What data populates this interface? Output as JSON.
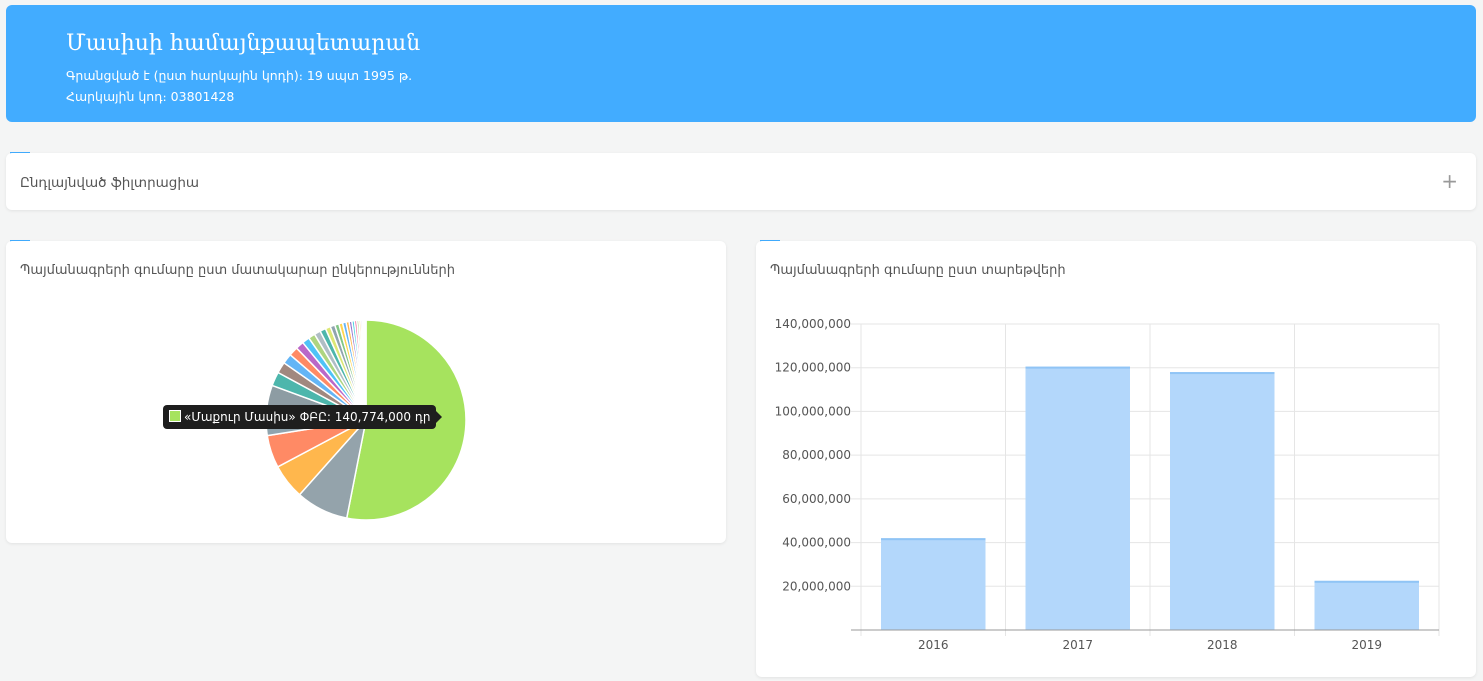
{
  "header": {
    "title": "Մասիսի համայնքապետարան",
    "registered": "Գրանցված է (ըստ հարկային կոդի)։ 19 սպտ 1995 թ.",
    "tax_code": "Հարկային կոդ։ 03801428"
  },
  "filter": {
    "label": "Ընդլայնված ֆիլտրացիա",
    "toggle_icon": "+"
  },
  "pie_card": {
    "title": "Պայմանագրերի գումարը ըստ մատակարար ընկերությունների",
    "tooltip": {
      "text": "«Մաքուր Մասիս» ՓԲԸ: 140,774,000 դր",
      "color": "#a6e35e"
    }
  },
  "bar_card": {
    "title": "Պայմանագրերի գումարը ըստ տարեթվերի"
  },
  "chart_data": [
    {
      "type": "pie",
      "title": "Պայմանագրերի գումարը ըստ մատակարար ընկերությունների",
      "slices": [
        {
          "label": "«Մաքուր Մասիս» ՓԲԸ",
          "value": 140774000,
          "color": "#a6e35e"
        },
        {
          "label": "",
          "value": 22500000,
          "color": "#94a3ab"
        },
        {
          "label": "",
          "value": 15000000,
          "color": "#ffb74d"
        },
        {
          "label": "",
          "value": 14000000,
          "color": "#ff8a65"
        },
        {
          "label": "",
          "value": 11500000,
          "color": "#90a4ae"
        },
        {
          "label": "",
          "value": 10000000,
          "color": "#8d9ca3"
        },
        {
          "label": "",
          "value": 6000000,
          "color": "#4db6ac"
        },
        {
          "label": "",
          "value": 4800000,
          "color": "#a1887f"
        },
        {
          "label": "",
          "value": 4300000,
          "color": "#64b5f6"
        },
        {
          "label": "",
          "value": 3900000,
          "color": "#ff8a65"
        },
        {
          "label": "",
          "value": 3500000,
          "color": "#ba68c8"
        },
        {
          "label": "",
          "value": 3200000,
          "color": "#4fc3f7"
        },
        {
          "label": "",
          "value": 2900000,
          "color": "#aed581"
        },
        {
          "label": "",
          "value": 2700000,
          "color": "#b0bec5"
        },
        {
          "label": "",
          "value": 2500000,
          "color": "#4db6ac"
        },
        {
          "label": "",
          "value": 2200000,
          "color": "#dce775"
        },
        {
          "label": "",
          "value": 2000000,
          "color": "#90a4ae"
        },
        {
          "label": "",
          "value": 1800000,
          "color": "#81c784"
        },
        {
          "label": "",
          "value": 1600000,
          "color": "#ffd54f"
        },
        {
          "label": "",
          "value": 1500000,
          "color": "#64b5f6"
        },
        {
          "label": "",
          "value": 1300000,
          "color": "#ffb74d"
        },
        {
          "label": "",
          "value": 1200000,
          "color": "#9575cd"
        },
        {
          "label": "",
          "value": 1100000,
          "color": "#4dd0e1"
        },
        {
          "label": "",
          "value": 1000000,
          "color": "#f06292"
        },
        {
          "label": "",
          "value": 900000,
          "color": "#aed581"
        },
        {
          "label": "",
          "value": 800000,
          "color": "#ffcc80"
        },
        {
          "label": "",
          "value": 700000,
          "color": "#b39ddb"
        },
        {
          "label": "",
          "value": 600000,
          "color": "#80cbc4"
        },
        {
          "label": "",
          "value": 500000,
          "color": "#c5e1a5"
        },
        {
          "label": "",
          "value": 400000,
          "color": "#ef9a9a"
        }
      ]
    },
    {
      "type": "bar",
      "title": "Պայմանագրերի գումարը ըստ տարեթվերի",
      "categories": [
        "2016",
        "2017",
        "2018",
        "2019"
      ],
      "values": [
        42000000,
        120500000,
        118000000,
        22500000
      ],
      "ylim": [
        0,
        140000000
      ],
      "yticks": [
        20000000,
        40000000,
        60000000,
        80000000,
        100000000,
        120000000,
        140000000
      ],
      "ytick_labels": [
        "20,000,000",
        "40,000,000",
        "60,000,000",
        "80,000,000",
        "100,000,000",
        "120,000,000",
        "140,000,000"
      ],
      "bar_color": "#b3d7fb",
      "bar_top_color": "#90c4f5",
      "grid": true
    }
  ]
}
